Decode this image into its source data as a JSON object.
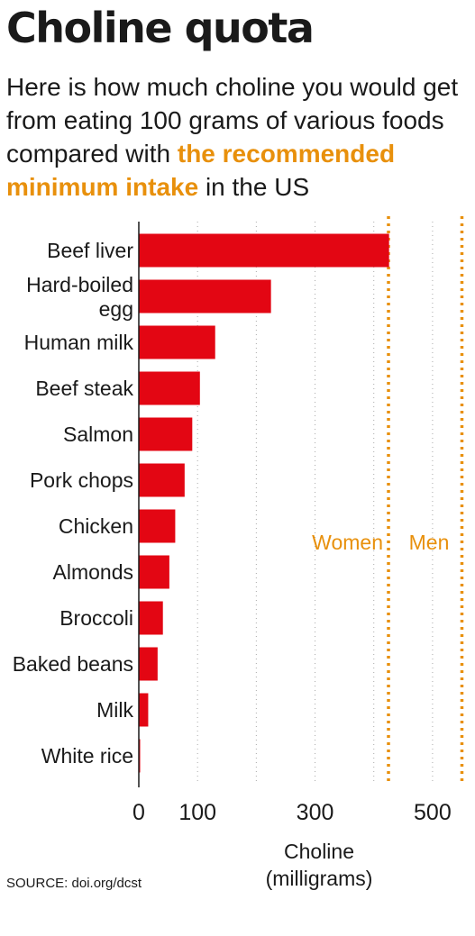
{
  "header": {
    "title": "Choline quota",
    "subtitle_pre": "Here is how much choline you would get from eating 100 grams of various foods compared with ",
    "subtitle_highlight": "the recommended minimum intake",
    "subtitle_post": " in the US"
  },
  "source": "SOURCE: doi.org/dcst",
  "colors": {
    "bar": "#e30613",
    "reference": "#e8900c",
    "grid": "#aaaaaa",
    "text": "#1a1a1a"
  },
  "chart_data": {
    "type": "bar",
    "orientation": "horizontal",
    "categories": [
      "Beef liver",
      "Hard-boiled egg",
      "Human milk",
      "Beef steak",
      "Salmon",
      "Pork chops",
      "Chicken",
      "Almonds",
      "Broccoli",
      "Baked beans",
      "Milk",
      "White rice"
    ],
    "values": [
      426,
      225,
      130,
      104,
      91,
      78,
      62,
      52,
      41,
      32,
      16,
      2
    ],
    "xlim": [
      0,
      550
    ],
    "xticks": [
      0,
      100,
      300,
      500
    ],
    "gridlines": [
      100,
      200,
      300,
      400,
      500
    ],
    "xlabel": [
      "Choline",
      "(milligrams)"
    ],
    "reference_lines": [
      {
        "label": "Women",
        "value": 425
      },
      {
        "label": "Men",
        "value": 550
      }
    ]
  }
}
